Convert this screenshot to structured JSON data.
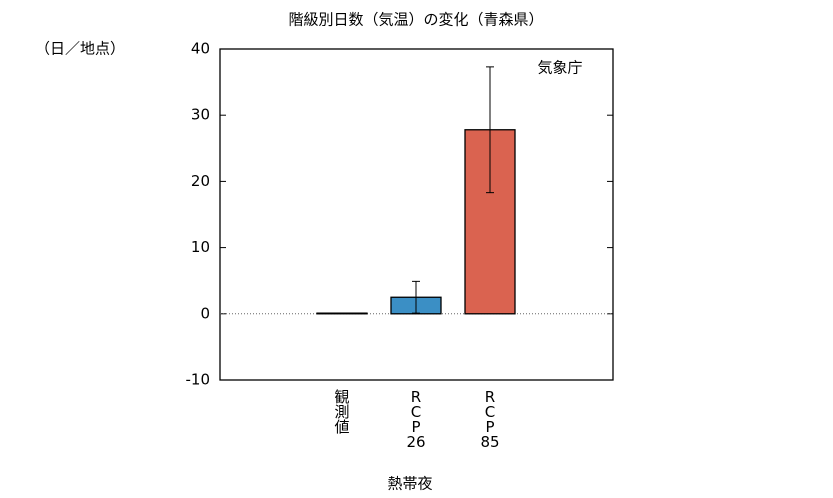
{
  "chart_data": {
    "type": "bar",
    "title": "階級別日数（気温）の変化（青森県）",
    "y_unit": "（日／地点）",
    "annotation": "気象庁",
    "xlabel": "熱帯夜",
    "categories": [
      "観測値",
      "RCP26",
      "RCP85"
    ],
    "values": [
      0.1,
      2.5,
      27.8
    ],
    "errors": [
      null,
      2.4,
      9.5
    ],
    "colors": [
      "#000000",
      "#3b8fc5",
      "#da6350"
    ],
    "ylim": [
      -10,
      40
    ],
    "yticks": [
      -10,
      0,
      10,
      20,
      30,
      40
    ],
    "zero_line": true
  }
}
